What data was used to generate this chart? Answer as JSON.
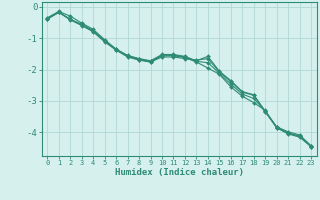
{
  "xlabel": "Humidex (Indice chaleur)",
  "x": [
    0,
    1,
    2,
    3,
    4,
    5,
    6,
    7,
    8,
    9,
    10,
    11,
    12,
    13,
    14,
    15,
    16,
    17,
    18,
    19,
    20,
    21,
    22,
    23
  ],
  "line1": [
    -0.35,
    -0.15,
    -0.3,
    -0.52,
    -0.72,
    -1.05,
    -1.35,
    -1.55,
    -1.65,
    -1.72,
    -1.52,
    -1.52,
    -1.58,
    -1.72,
    -1.58,
    -2.05,
    -2.35,
    -2.7,
    -2.8,
    -3.32,
    -3.82,
    -3.98,
    -4.08,
    -4.42
  ],
  "line2": [
    -0.4,
    -0.18,
    -0.4,
    -0.58,
    -0.78,
    -1.1,
    -1.38,
    -1.58,
    -1.68,
    -1.76,
    -1.56,
    -1.56,
    -1.62,
    -1.76,
    -1.95,
    -2.15,
    -2.55,
    -2.85,
    -3.05,
    -3.3,
    -3.85,
    -4.05,
    -4.15,
    -4.45
  ],
  "line3": [
    -0.38,
    -0.18,
    -0.42,
    -0.6,
    -0.8,
    -1.12,
    -1.38,
    -1.6,
    -1.7,
    -1.76,
    -1.6,
    -1.6,
    -1.65,
    -1.7,
    -1.65,
    -2.08,
    -2.38,
    -2.72,
    -2.82,
    -3.35,
    -3.85,
    -4.02,
    -4.12,
    -4.46
  ],
  "line4": [
    -0.38,
    -0.17,
    -0.4,
    -0.56,
    -0.76,
    -1.08,
    -1.35,
    -1.56,
    -1.66,
    -1.74,
    -1.54,
    -1.54,
    -1.6,
    -1.74,
    -1.78,
    -2.12,
    -2.46,
    -2.78,
    -2.92,
    -3.32,
    -3.84,
    -4.02,
    -4.12,
    -4.44
  ],
  "line_color": "#2e8b74",
  "marker": "D",
  "marker_size": 2.0,
  "bg_color": "#d6f0ed",
  "grid_color": "#b0d8d4",
  "axis_color": "#2e8b74",
  "ylim": [
    -4.75,
    0.15
  ],
  "yticks": [
    0,
    -1,
    -2,
    -3,
    -4
  ],
  "xlim": [
    -0.5,
    23.5
  ]
}
